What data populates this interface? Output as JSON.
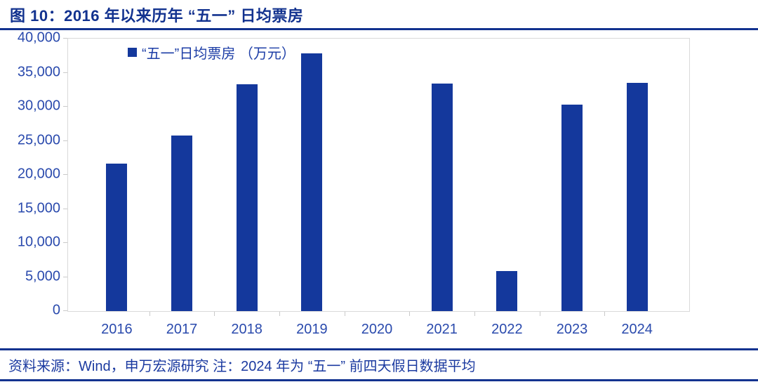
{
  "figure": {
    "title": "图 10：2016 年以来历年 “五一” 日均票房"
  },
  "chart_data": {
    "type": "bar",
    "title": "2016 年以来历年“五一”日均票房",
    "legend": [
      "“五一”日均票房 （万元）"
    ],
    "categories": [
      "2016",
      "2017",
      "2018",
      "2019",
      "2020",
      "2021",
      "2022",
      "2023",
      "2024"
    ],
    "values": [
      21700,
      25800,
      33300,
      37800,
      0,
      33400,
      5900,
      30300,
      33500
    ],
    "unit": "万元",
    "xlabel": "",
    "ylabel": "",
    "ylim": [
      0,
      40000
    ],
    "ytick_step": 5000,
    "ytick_labels": [
      "0",
      "5,000",
      "10,000",
      "15,000",
      "20,000",
      "25,000",
      "30,000",
      "35,000",
      "40,000"
    ],
    "grid": false,
    "legend_position": "top-left-inside"
  },
  "footer": {
    "source_note": "资料来源：Wind，申万宏源研究  注：2024 年为 “五一” 前四天假日数据平均"
  },
  "colors": {
    "title_text": "#12328F",
    "rule": "#12328F",
    "bar": "#14389C",
    "axis_text": "#2A4AAD",
    "legend_text": "#1C3DA6",
    "footer_text": "#1B3AA0",
    "plot_border": "#D9D9D9",
    "tick": "#C9C9C9"
  }
}
